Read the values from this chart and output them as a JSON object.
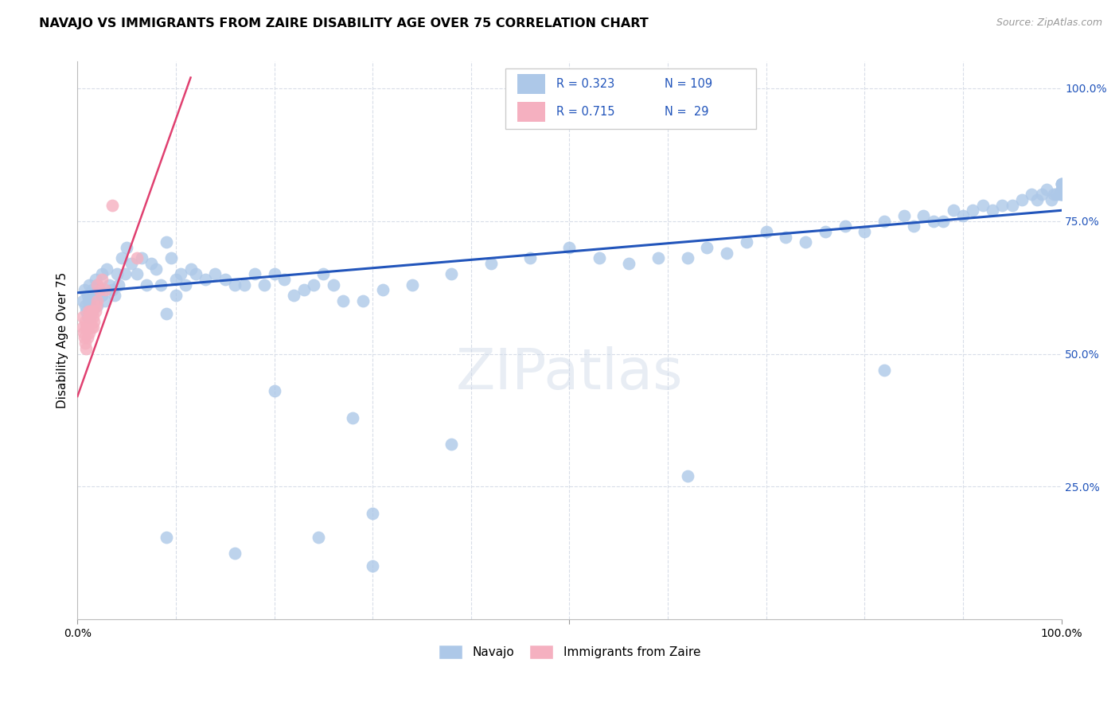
{
  "title": "NAVAJO VS IMMIGRANTS FROM ZAIRE DISABILITY AGE OVER 75 CORRELATION CHART",
  "source": "Source: ZipAtlas.com",
  "ylabel": "Disability Age Over 75",
  "watermark": "ZIPatlas",
  "label_navajo": "Navajo",
  "label_zaire": "Immigrants from Zaire",
  "blue_color": "#adc8e8",
  "blue_line_color": "#2255bb",
  "pink_color": "#f5b0c0",
  "pink_line_color": "#e04070",
  "grid_color": "#d8dde8",
  "navajo_x": [
    0.005,
    0.007,
    0.008,
    0.009,
    0.01,
    0.01,
    0.011,
    0.012,
    0.013,
    0.013,
    0.015,
    0.015,
    0.016,
    0.018,
    0.018,
    0.02,
    0.02,
    0.022,
    0.025,
    0.025,
    0.028,
    0.03,
    0.032,
    0.035,
    0.038,
    0.04,
    0.042,
    0.045,
    0.048,
    0.05,
    0.055,
    0.06,
    0.065,
    0.07,
    0.075,
    0.08,
    0.085,
    0.09,
    0.095,
    0.1,
    0.1,
    0.105,
    0.11,
    0.115,
    0.12,
    0.13,
    0.14,
    0.15,
    0.16,
    0.17,
    0.18,
    0.19,
    0.2,
    0.21,
    0.22,
    0.23,
    0.24,
    0.25,
    0.26,
    0.27,
    0.29,
    0.31,
    0.34,
    0.38,
    0.42,
    0.46,
    0.5,
    0.53,
    0.56,
    0.59,
    0.62,
    0.64,
    0.66,
    0.68,
    0.7,
    0.72,
    0.74,
    0.76,
    0.78,
    0.8,
    0.82,
    0.84,
    0.85,
    0.86,
    0.87,
    0.88,
    0.89,
    0.9,
    0.91,
    0.92,
    0.93,
    0.94,
    0.95,
    0.96,
    0.97,
    0.975,
    0.98,
    0.985,
    0.99,
    0.992,
    0.995,
    0.998,
    1.0,
    1.0,
    1.0,
    1.0,
    1.0,
    1.0,
    1.0,
    1.0,
    0.2,
    0.28,
    0.38,
    0.62,
    0.82
  ],
  "navajo_y": [
    0.6,
    0.62,
    0.59,
    0.58,
    0.61,
    0.57,
    0.6,
    0.63,
    0.59,
    0.57,
    0.62,
    0.58,
    0.61,
    0.64,
    0.6,
    0.63,
    0.59,
    0.62,
    0.65,
    0.61,
    0.6,
    0.66,
    0.63,
    0.62,
    0.61,
    0.65,
    0.63,
    0.68,
    0.65,
    0.7,
    0.67,
    0.65,
    0.68,
    0.63,
    0.67,
    0.66,
    0.63,
    0.71,
    0.68,
    0.64,
    0.61,
    0.65,
    0.63,
    0.66,
    0.65,
    0.64,
    0.65,
    0.64,
    0.63,
    0.63,
    0.65,
    0.63,
    0.65,
    0.64,
    0.61,
    0.62,
    0.63,
    0.65,
    0.63,
    0.6,
    0.6,
    0.62,
    0.63,
    0.65,
    0.67,
    0.68,
    0.7,
    0.68,
    0.67,
    0.68,
    0.68,
    0.7,
    0.69,
    0.71,
    0.73,
    0.72,
    0.71,
    0.73,
    0.74,
    0.73,
    0.75,
    0.76,
    0.74,
    0.76,
    0.75,
    0.75,
    0.77,
    0.76,
    0.77,
    0.78,
    0.77,
    0.78,
    0.78,
    0.79,
    0.8,
    0.79,
    0.8,
    0.81,
    0.79,
    0.8,
    0.8,
    0.8,
    0.82,
    0.81,
    0.8,
    0.8,
    0.81,
    0.8,
    0.82,
    0.82,
    0.43,
    0.38,
    0.33,
    0.27,
    0.47
  ],
  "navajo_extra_x": [
    0.3,
    0.3,
    0.245,
    0.16,
    0.09,
    0.09
  ],
  "navajo_extra_y": [
    0.1,
    0.2,
    0.155,
    0.125,
    0.155,
    0.575
  ],
  "zaire_x": [
    0.005,
    0.005,
    0.006,
    0.007,
    0.008,
    0.008,
    0.009,
    0.009,
    0.01,
    0.01,
    0.011,
    0.012,
    0.012,
    0.013,
    0.013,
    0.014,
    0.015,
    0.016,
    0.016,
    0.017,
    0.018,
    0.019,
    0.02,
    0.02,
    0.022,
    0.025,
    0.028,
    0.035,
    0.06
  ],
  "zaire_y": [
    0.57,
    0.55,
    0.54,
    0.53,
    0.56,
    0.52,
    0.55,
    0.51,
    0.55,
    0.53,
    0.58,
    0.57,
    0.54,
    0.58,
    0.56,
    0.55,
    0.58,
    0.57,
    0.55,
    0.56,
    0.58,
    0.59,
    0.63,
    0.6,
    0.62,
    0.64,
    0.62,
    0.78,
    0.68
  ],
  "blue_trend_x": [
    0.0,
    1.0
  ],
  "blue_trend_y": [
    0.615,
    0.77
  ],
  "pink_trend_x": [
    0.0,
    0.115
  ],
  "pink_trend_y": [
    0.42,
    1.02
  ],
  "xlim": [
    0.0,
    1.0
  ],
  "ylim": [
    0.0,
    1.05
  ]
}
